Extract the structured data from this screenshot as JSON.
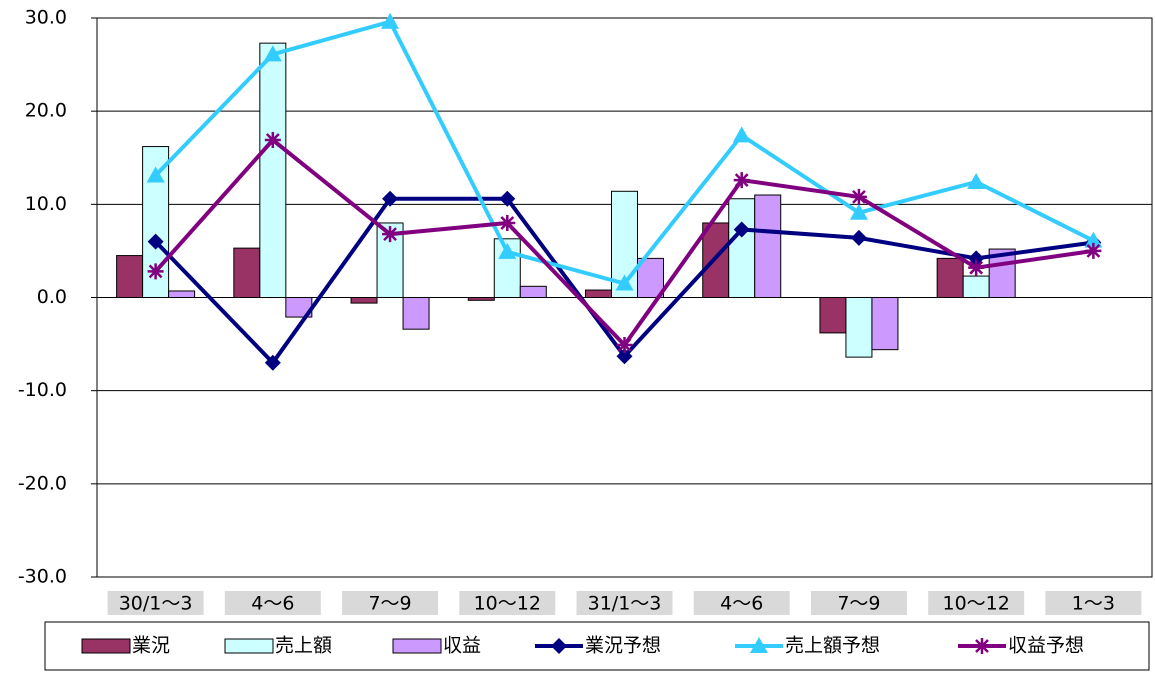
{
  "chart_data": {
    "type": "bar",
    "categories": [
      "30/1～3",
      "4～6",
      "7～9",
      "10～12",
      "31/1～3",
      "4～6",
      "7～9",
      "10～12",
      "1～3"
    ],
    "series": [
      {
        "name": "業況",
        "type": "bar",
        "color": "#993366",
        "values": [
          4.5,
          5.3,
          -0.6,
          -0.3,
          0.8,
          8.0,
          -3.8,
          4.2,
          null
        ]
      },
      {
        "name": "売上額",
        "type": "bar",
        "color": "#ccffff",
        "values": [
          16.2,
          27.3,
          8.0,
          6.3,
          11.4,
          10.6,
          -6.4,
          2.3,
          null
        ]
      },
      {
        "name": "収益",
        "type": "bar",
        "color": "#cc99ff",
        "values": [
          0.7,
          -2.1,
          -3.4,
          1.2,
          4.2,
          11.0,
          -5.6,
          5.2,
          null
        ]
      },
      {
        "name": "業況予想",
        "type": "line",
        "marker": "diamond",
        "color": "#000080",
        "values": [
          6.0,
          -7.0,
          10.6,
          10.6,
          -6.3,
          7.3,
          6.4,
          4.2,
          5.9
        ]
      },
      {
        "name": "売上額予想",
        "type": "line",
        "marker": "triangle",
        "color": "#33ccff",
        "values": [
          13.1,
          26.1,
          29.6,
          4.9,
          1.5,
          17.4,
          9.1,
          12.4,
          6.1
        ]
      },
      {
        "name": "収益予想",
        "type": "line",
        "marker": "asterisk",
        "color": "#800080",
        "values": [
          2.8,
          16.9,
          6.8,
          8.0,
          -5.1,
          12.6,
          10.8,
          3.2,
          5.0
        ]
      }
    ],
    "ylim": [
      -30,
      30
    ],
    "yticks": [
      {
        "value": -30,
        "label": "-30.0"
      },
      {
        "value": -20,
        "label": "-20.0"
      },
      {
        "value": -10,
        "label": "-10.0"
      },
      {
        "value": 0,
        "label": "0.0"
      },
      {
        "value": 10,
        "label": "10.0"
      },
      {
        "value": 20,
        "label": "20.0"
      },
      {
        "value": 30,
        "label": "30.0"
      }
    ],
    "grid": true,
    "legend": "bottom"
  }
}
